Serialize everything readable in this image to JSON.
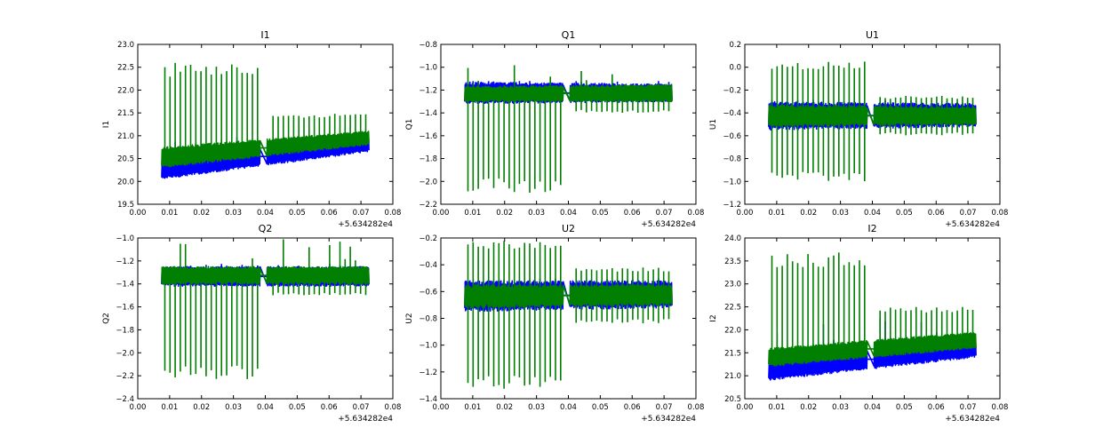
{
  "figure": {
    "series_colors": {
      "blue": "#0000ff",
      "green": "#007f00"
    },
    "x_offset_label": "+5.634282e4"
  },
  "chart_data": [
    {
      "type": "line",
      "title": "I1",
      "ylabel": "I1",
      "xlim": [
        0.0,
        0.08
      ],
      "ylim": [
        19.5,
        23.0
      ],
      "xticks": [
        "0.00",
        "0.01",
        "0.02",
        "0.03",
        "0.04",
        "0.05",
        "0.06",
        "0.07",
        "0.08"
      ],
      "yticks": [
        "19.5",
        "20.0",
        "20.5",
        "21.0",
        "21.5",
        "22.0",
        "22.5",
        "23.0"
      ],
      "x_range": [
        0.0075,
        0.0725
      ],
      "gap": [
        0.0385,
        0.0405
      ],
      "series": [
        {
          "name": "blue",
          "color": "#0000ff",
          "start_lo": 20.05,
          "start_hi": 20.45,
          "end_lo": 20.65,
          "end_hi": 21.05,
          "spike_max": 21.0
        },
        {
          "name": "green",
          "color": "#007f00",
          "start_lo": 20.3,
          "start_hi": 20.75,
          "end_lo": 20.8,
          "end_hi": 21.1,
          "spike_max_early": 22.6,
          "spike_max_late": 21.5,
          "spike_dir": "up"
        }
      ]
    },
    {
      "type": "line",
      "title": "Q1",
      "ylabel": "Q1",
      "xlim": [
        0.0,
        0.08
      ],
      "ylim": [
        -2.2,
        -0.8
      ],
      "xticks": [
        "0.00",
        "0.01",
        "0.02",
        "0.03",
        "0.04",
        "0.05",
        "0.06",
        "0.07",
        "0.08"
      ],
      "yticks": [
        "−2.2",
        "−2.0",
        "−1.8",
        "−1.6",
        "−1.4",
        "−1.2",
        "−1.0",
        "−0.8"
      ],
      "x_range": [
        0.0075,
        0.0725
      ],
      "gap": [
        0.0385,
        0.0405
      ],
      "series": [
        {
          "name": "blue",
          "color": "#0000ff",
          "start_lo": -1.32,
          "start_hi": -1.13,
          "end_lo": -1.3,
          "end_hi": -1.15,
          "spike_max": -1.12
        },
        {
          "name": "green",
          "color": "#007f00",
          "start_lo": -1.3,
          "start_hi": -1.17,
          "end_lo": -1.3,
          "end_hi": -1.15,
          "spike_max_early": -2.1,
          "spike_max_late": -1.4,
          "spike_dir": "down",
          "up_spike_max": -0.95
        }
      ]
    },
    {
      "type": "line",
      "title": "U1",
      "ylabel": "U1",
      "xlim": [
        0.0,
        0.08
      ],
      "ylim": [
        -1.2,
        0.2
      ],
      "xticks": [
        "0.00",
        "0.01",
        "0.02",
        "0.03",
        "0.04",
        "0.05",
        "0.06",
        "0.07",
        "0.08"
      ],
      "yticks": [
        "−1.2",
        "−1.0",
        "−0.8",
        "−0.6",
        "−0.4",
        "−0.2",
        "0.0",
        "0.2"
      ],
      "x_range": [
        0.0075,
        0.0725
      ],
      "gap": [
        0.0385,
        0.0405
      ],
      "series": [
        {
          "name": "blue",
          "color": "#0000ff",
          "start_lo": -0.55,
          "start_hi": -0.3,
          "end_lo": -0.52,
          "end_hi": -0.32,
          "spike_max": -0.28
        },
        {
          "name": "green",
          "color": "#007f00",
          "start_lo": -0.52,
          "start_hi": -0.33,
          "end_lo": -0.5,
          "end_hi": -0.35,
          "spike_max_early": 0.05,
          "spike_max_late": -0.25,
          "spike_dir": "both",
          "down_spike_max": -1.0
        }
      ]
    },
    {
      "type": "line",
      "title": "Q2",
      "ylabel": "Q2",
      "xlim": [
        0.0,
        0.08
      ],
      "ylim": [
        -2.4,
        -1.0
      ],
      "xticks": [
        "0.00",
        "0.01",
        "0.02",
        "0.03",
        "0.04",
        "0.05",
        "0.06",
        "0.07",
        "0.08"
      ],
      "yticks": [
        "−2.4",
        "−2.2",
        "−2.0",
        "−1.8",
        "−1.6",
        "−1.4",
        "−1.2",
        "−1.0"
      ],
      "x_range": [
        0.0075,
        0.0725
      ],
      "gap": [
        0.0385,
        0.0405
      ],
      "series": [
        {
          "name": "blue",
          "color": "#0000ff",
          "start_lo": -1.42,
          "start_hi": -1.25,
          "end_lo": -1.42,
          "end_hi": -1.25,
          "spike_max": -1.22
        },
        {
          "name": "green",
          "color": "#007f00",
          "start_lo": -1.4,
          "start_hi": -1.25,
          "end_lo": -1.4,
          "end_hi": -1.25,
          "spike_max_early": -2.25,
          "spike_max_late": -1.5,
          "spike_dir": "down",
          "up_spike_max": -1.0
        }
      ]
    },
    {
      "type": "line",
      "title": "U2",
      "ylabel": "U2",
      "xlim": [
        0.0,
        0.08
      ],
      "ylim": [
        -1.4,
        -0.2
      ],
      "xticks": [
        "0.00",
        "0.01",
        "0.02",
        "0.03",
        "0.04",
        "0.05",
        "0.06",
        "0.07",
        "0.08"
      ],
      "yticks": [
        "−1.4",
        "−1.2",
        "−1.0",
        "−0.8",
        "−0.6",
        "−0.4",
        "−0.2"
      ],
      "x_range": [
        0.0075,
        0.0725
      ],
      "gap": [
        0.0385,
        0.0405
      ],
      "series": [
        {
          "name": "blue",
          "color": "#0000ff",
          "start_lo": -0.75,
          "start_hi": -0.52,
          "end_lo": -0.72,
          "end_hi": -0.52,
          "spike_max": -0.5
        },
        {
          "name": "green",
          "color": "#007f00",
          "start_lo": -0.72,
          "start_hi": -0.55,
          "end_lo": -0.7,
          "end_hi": -0.55,
          "spike_max_early": -0.22,
          "spike_max_late": -0.42,
          "spike_dir": "both",
          "down_spike_max": -1.33
        }
      ]
    },
    {
      "type": "line",
      "title": "I2",
      "ylabel": "I2",
      "xlim": [
        0.0,
        0.08
      ],
      "ylim": [
        20.5,
        24.0
      ],
      "xticks": [
        "0.00",
        "0.01",
        "0.02",
        "0.03",
        "0.04",
        "0.05",
        "0.06",
        "0.07",
        "0.08"
      ],
      "yticks": [
        "20.5",
        "21.0",
        "21.5",
        "22.0",
        "22.5",
        "23.0",
        "23.5",
        "24.0"
      ],
      "x_range": [
        0.0075,
        0.0725
      ],
      "gap": [
        0.0385,
        0.0405
      ],
      "series": [
        {
          "name": "blue",
          "color": "#0000ff",
          "start_lo": 20.9,
          "start_hi": 21.3,
          "end_lo": 21.4,
          "end_hi": 21.85,
          "spike_max": 22.3
        },
        {
          "name": "green",
          "color": "#007f00",
          "start_lo": 21.2,
          "start_hi": 21.6,
          "end_lo": 21.6,
          "end_hi": 21.95,
          "spike_max_early": 23.7,
          "spike_max_late": 22.5,
          "spike_dir": "up"
        }
      ]
    }
  ]
}
